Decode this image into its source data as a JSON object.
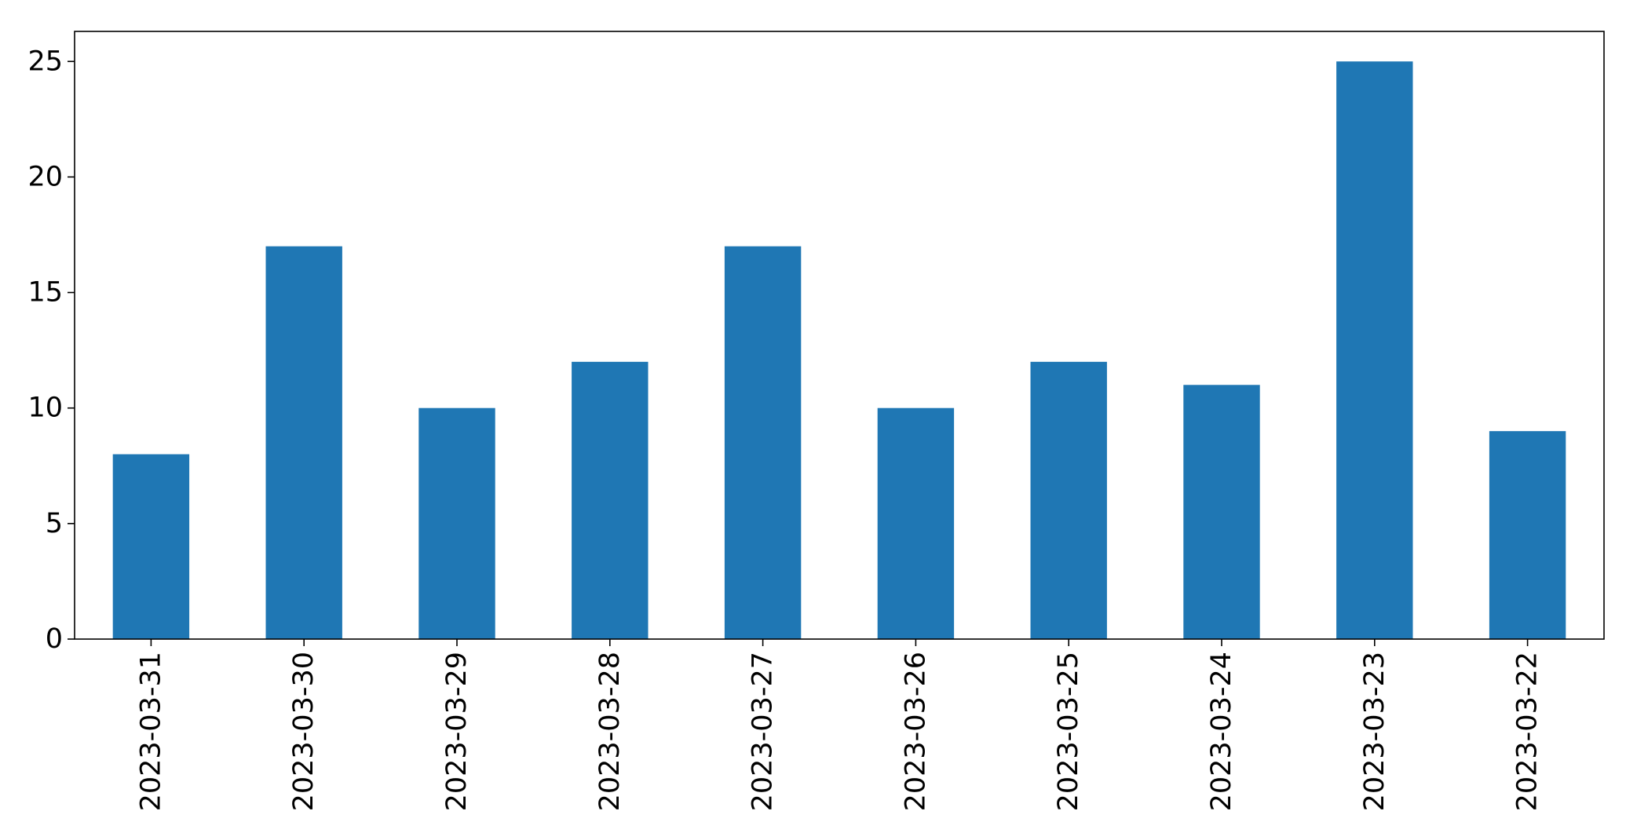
{
  "chart_data": {
    "type": "bar",
    "title": "",
    "xlabel": "",
    "ylabel": "",
    "categories": [
      "2023-03-31",
      "2023-03-30",
      "2023-03-29",
      "2023-03-28",
      "2023-03-27",
      "2023-03-26",
      "2023-03-25",
      "2023-03-24",
      "2023-03-23",
      "2023-03-22"
    ],
    "values": [
      8,
      17,
      10,
      12,
      17,
      10,
      12,
      11,
      25,
      9
    ],
    "ylim": [
      0,
      26.3
    ],
    "yticks": [
      "0",
      "5",
      "10",
      "15",
      "20",
      "25"
    ],
    "bar_color": "#1f77b4",
    "legend": "none",
    "grid": false
  }
}
